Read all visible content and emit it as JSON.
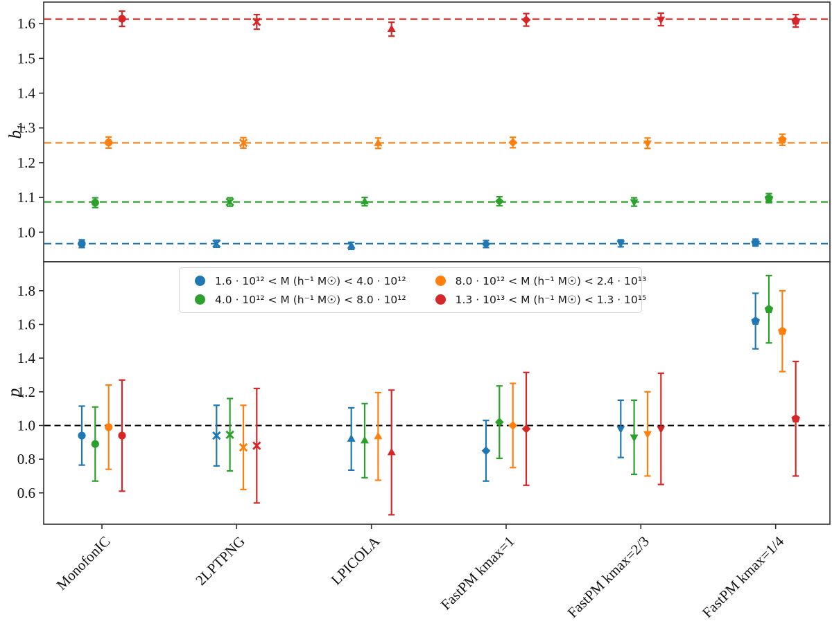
{
  "legend": {
    "position": "upper center",
    "items": [
      {
        "label": "1.6 · 10¹² < M (h⁻¹ M☉) < 4.0 · 10¹²",
        "color": "#1f77b4"
      },
      {
        "label": "4.0 · 10¹² < M (h⁻¹ M☉) < 8.0 · 10¹²",
        "color": "#2ca02c"
      },
      {
        "label": "8.0 · 10¹² < M (h⁻¹ M☉) < 2.4 · 10¹³",
        "color": "#ff7f0e"
      },
      {
        "label": "1.3 · 10¹³ < M (h⁻¹ M☉) < 1.3 · 10¹⁵",
        "color": "#d62728"
      }
    ]
  },
  "category_markers": [
    "circle",
    "x",
    "triangle-up",
    "diamond",
    "triangle-down",
    "pentagon"
  ],
  "chart_data": [
    {
      "type": "scatter",
      "panel": "top",
      "ylabel_main": "b",
      "ylabel_sub": "1",
      "ylim": [
        0.915,
        1.662
      ],
      "yticks": [
        1.0,
        1.1,
        1.2,
        1.3,
        1.4,
        1.5,
        1.6
      ],
      "grid": false,
      "categories": [
        "MonofonIC",
        "2LPTPNG",
        "LPICOLA",
        "FastPM kmax=1",
        "FastPM kmax=2/3",
        "FastPM kmax=1/4"
      ],
      "series": [
        {
          "name": "1.6 · 10¹² < M (h⁻¹ M☉) < 4.0 · 10¹²",
          "color": "#1f77b4",
          "values": [
            0.967,
            0.967,
            0.961,
            0.966,
            0.968,
            0.97
          ],
          "errors": [
            0.011,
            0.01,
            0.01,
            0.01,
            0.01,
            0.01
          ],
          "reference_line": 0.967
        },
        {
          "name": "4.0 · 10¹² < M (h⁻¹ M☉) < 8.0 · 10¹²",
          "color": "#2ca02c",
          "values": [
            1.085,
            1.087,
            1.088,
            1.089,
            1.087,
            1.098
          ],
          "errors": [
            0.014,
            0.012,
            0.012,
            0.013,
            0.012,
            0.013
          ],
          "reference_line": 1.087
        },
        {
          "name": "8.0 · 10¹² < M (h⁻¹ M☉) < 2.4 · 10¹³",
          "color": "#ff7f0e",
          "values": [
            1.258,
            1.257,
            1.256,
            1.258,
            1.256,
            1.266
          ],
          "errors": [
            0.016,
            0.015,
            0.015,
            0.015,
            0.015,
            0.016
          ],
          "reference_line": 1.257
        },
        {
          "name": "1.3 · 10¹³ < M (h⁻¹ M☉) < 1.3 · 10¹⁵",
          "color": "#d62728",
          "values": [
            1.614,
            1.605,
            1.584,
            1.611,
            1.612,
            1.608
          ],
          "errors": [
            0.022,
            0.021,
            0.02,
            0.018,
            0.018,
            0.018
          ],
          "reference_line": 1.613
        }
      ]
    },
    {
      "type": "scatter",
      "panel": "bottom",
      "ylabel_main": "p",
      "ylabel_sub": "",
      "ylim": [
        0.414,
        1.972
      ],
      "yticks": [
        0.6,
        0.8,
        1.0,
        1.2,
        1.4,
        1.6,
        1.8
      ],
      "grid": false,
      "reference_line": {
        "value": 1.0,
        "color": "#000000"
      },
      "categories": [
        "MonofonIC",
        "2LPTPNG",
        "LPICOLA",
        "FastPM kmax=1",
        "FastPM kmax=2/3",
        "FastPM kmax=1/4"
      ],
      "series": [
        {
          "name": "1.6 · 10¹² < M (h⁻¹ M☉) < 4.0 · 10¹²",
          "color": "#1f77b4",
          "values": [
            0.94,
            0.94,
            0.92,
            0.85,
            0.98,
            1.62
          ],
          "errors": [
            0.175,
            0.18,
            0.185,
            0.18,
            0.17,
            0.165
          ]
        },
        {
          "name": "4.0 · 10¹² < M (h⁻¹ M☉) < 8.0 · 10¹²",
          "color": "#2ca02c",
          "values": [
            0.89,
            0.945,
            0.91,
            1.02,
            0.93,
            1.69
          ],
          "errors": [
            0.22,
            0.215,
            0.22,
            0.215,
            0.22,
            0.2
          ]
        },
        {
          "name": "8.0 · 10¹² < M (h⁻¹ M☉) < 2.4 · 10¹³",
          "color": "#ff7f0e",
          "values": [
            0.99,
            0.87,
            0.935,
            1.0,
            0.95,
            1.56
          ],
          "errors": [
            0.25,
            0.25,
            0.26,
            0.25,
            0.25,
            0.24
          ]
        },
        {
          "name": "1.3 · 10¹³ < M (h⁻¹ M☉) < 1.3 · 10¹⁵",
          "color": "#d62728",
          "values": [
            0.94,
            0.88,
            0.84,
            0.98,
            0.98,
            1.04
          ],
          "errors": [
            0.33,
            0.34,
            0.37,
            0.335,
            0.33,
            0.34
          ]
        }
      ]
    }
  ]
}
